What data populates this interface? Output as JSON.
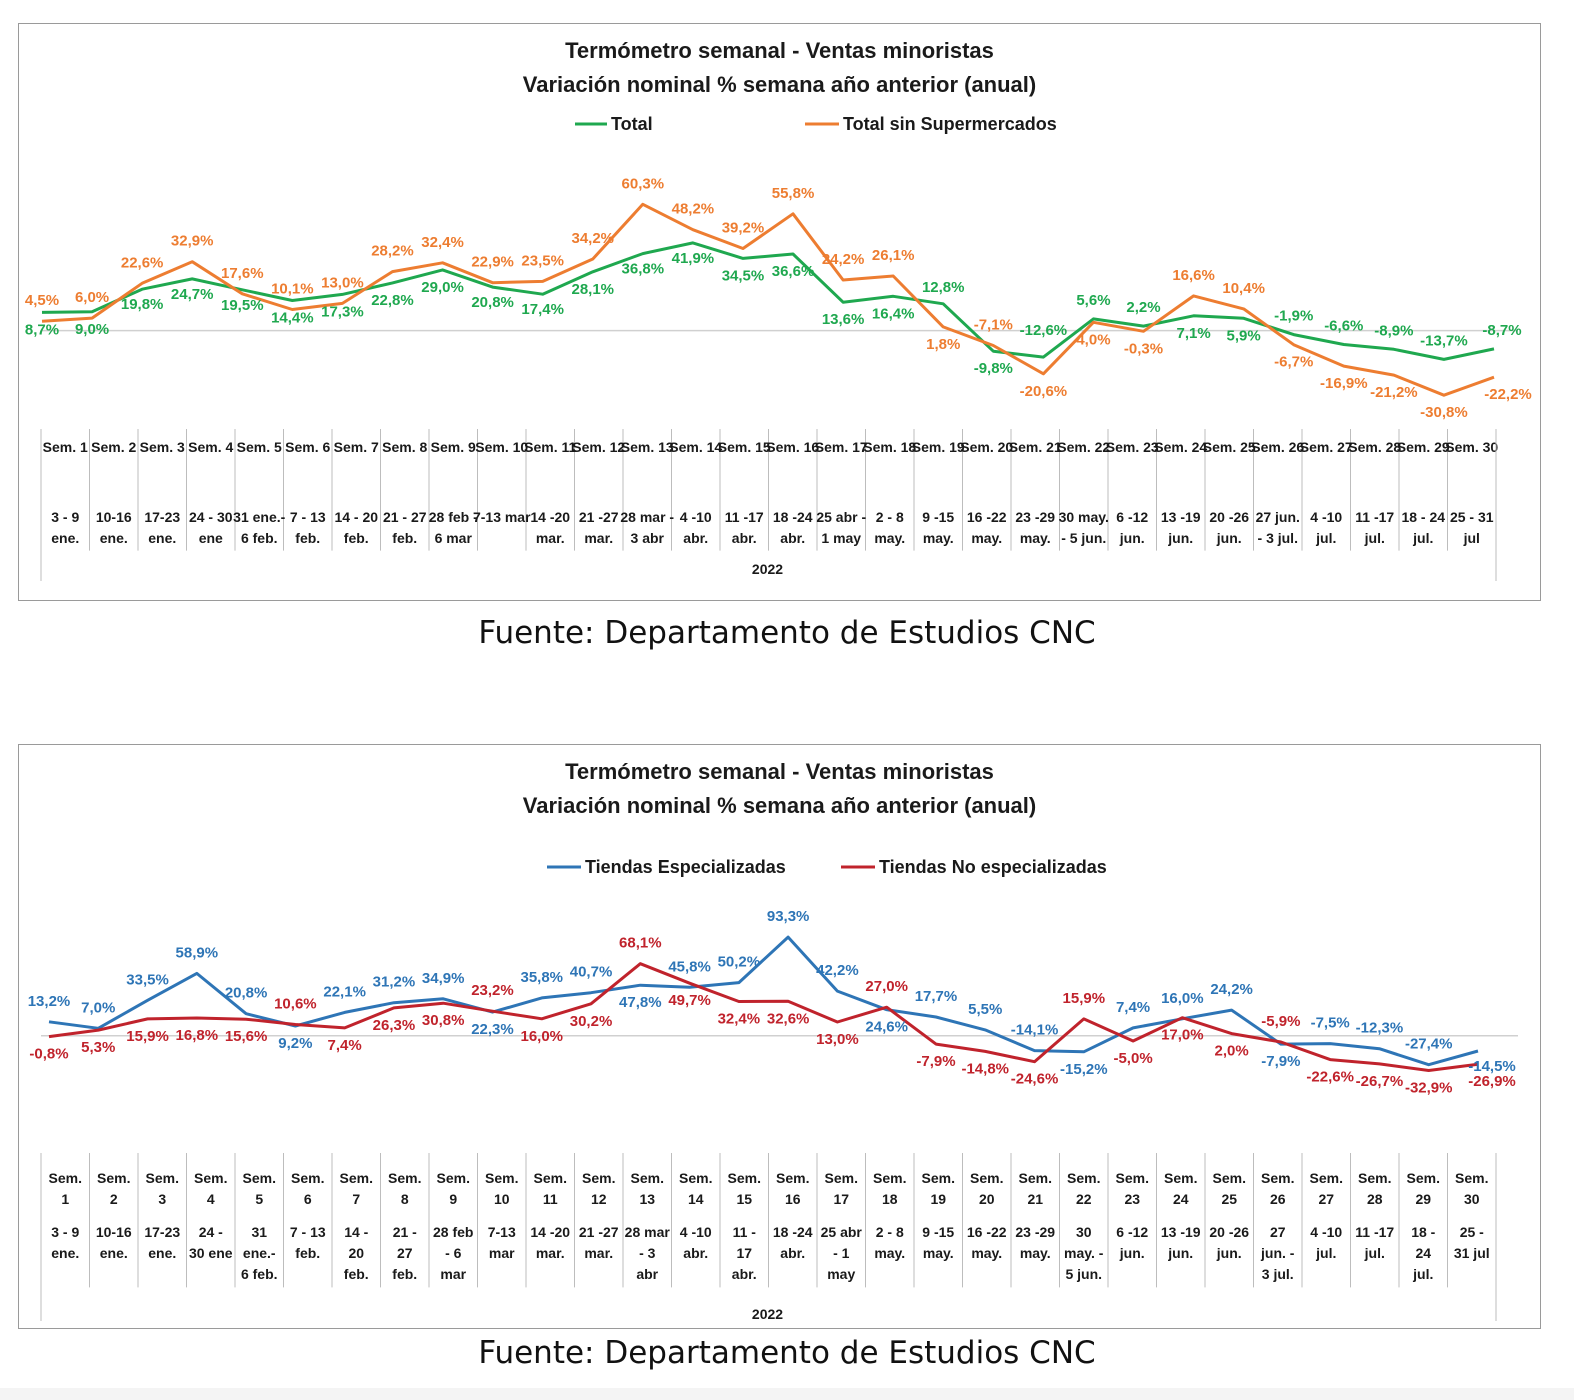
{
  "chart_data": [
    {
      "type": "line",
      "title": "Termómetro semanal - Ventas minoristas",
      "subtitle": "Variación nominal % semana año anterior (anual)",
      "x_group_label": "2022",
      "categories": [
        {
          "week": "Sem. 1",
          "dates": "3 - 9 ene."
        },
        {
          "week": "Sem. 2",
          "dates": "10-16 ene."
        },
        {
          "week": "Sem. 3",
          "dates": "17-23 ene."
        },
        {
          "week": "Sem. 4",
          "dates": "24 - 30 ene"
        },
        {
          "week": "Sem. 5",
          "dates": "31 ene.- 6 feb."
        },
        {
          "week": "Sem. 6",
          "dates": "7 - 13 feb."
        },
        {
          "week": "Sem. 7",
          "dates": "14 - 20 feb."
        },
        {
          "week": "Sem. 8",
          "dates": "21 - 27 feb."
        },
        {
          "week": "Sem. 9",
          "dates": "28 feb - 6 mar"
        },
        {
          "week": "Sem. 10",
          "dates": "7-13 mar"
        },
        {
          "week": "Sem. 11",
          "dates": "14 -20 mar."
        },
        {
          "week": "Sem. 12",
          "dates": "21 -27 mar."
        },
        {
          "week": "Sem. 13",
          "dates": "28 mar - 3 abr"
        },
        {
          "week": "Sem. 14",
          "dates": "4 -10 abr."
        },
        {
          "week": "Sem. 15",
          "dates": "11 -17 abr."
        },
        {
          "week": "Sem. 16",
          "dates": "18 -24 abr."
        },
        {
          "week": "Sem. 17",
          "dates": "25 abr - 1 may"
        },
        {
          "week": "Sem. 18",
          "dates": "2 - 8 may."
        },
        {
          "week": "Sem. 19",
          "dates": "9 -15 may."
        },
        {
          "week": "Sem. 20",
          "dates": "16 -22 may."
        },
        {
          "week": "Sem. 21",
          "dates": "23 -29 may."
        },
        {
          "week": "Sem. 22",
          "dates": "30 may. - 5 jun."
        },
        {
          "week": "Sem. 23",
          "dates": "6 -12 jun."
        },
        {
          "week": "Sem. 24",
          "dates": "13 -19 jun."
        },
        {
          "week": "Sem. 25",
          "dates": "20 -26 jun."
        },
        {
          "week": "Sem. 26",
          "dates": "27 jun. - 3 jul."
        },
        {
          "week": "Sem. 27",
          "dates": "4 -10 jul."
        },
        {
          "week": "Sem. 28",
          "dates": "11 -17 jul."
        },
        {
          "week": "Sem. 29",
          "dates": "18 - 24 jul."
        },
        {
          "week": "Sem. 30",
          "dates": "25 - 31 jul"
        }
      ],
      "ylim": [
        -35,
        70
      ],
      "grid": false,
      "legend_position": "top",
      "series": [
        {
          "name": "Total",
          "color": "#1fa84f",
          "values": [
            8.7,
            9.0,
            19.8,
            24.7,
            19.5,
            14.4,
            17.3,
            22.8,
            29.0,
            20.8,
            17.4,
            28.1,
            36.8,
            41.9,
            34.5,
            36.6,
            13.6,
            16.4,
            12.8,
            -9.8,
            -12.6,
            5.6,
            2.2,
            7.1,
            5.9,
            -1.9,
            -6.6,
            -8.9,
            -13.7,
            -8.7
          ],
          "labels": [
            "8,7%",
            "9,0%",
            "19,8%",
            "24,7%",
            "19,5%",
            "14,4%",
            "17,3%",
            "22,8%",
            "29,0%",
            "20,8%",
            "17,4%",
            "28,1%",
            "36,8%",
            "41,9%",
            "34,5%",
            "36,6%",
            "13,6%",
            "16,4%",
            "12,8%",
            "-9,8%",
            "-12,6%",
            "5,6%",
            "2,2%",
            "7,1%",
            "5,9%",
            "-1,9%",
            "-6,6%",
            "-8,9%",
            "-13,7%",
            "-8,7%"
          ]
        },
        {
          "name": "Total sin Supermercados",
          "color": "#ed7d31",
          "values": [
            4.5,
            6.0,
            22.6,
            32.9,
            17.6,
            10.1,
            13.0,
            28.2,
            32.4,
            22.9,
            23.5,
            34.2,
            60.3,
            48.2,
            39.2,
            55.8,
            24.2,
            26.1,
            1.8,
            -7.1,
            -20.6,
            4.0,
            -0.3,
            16.6,
            10.4,
            -6.7,
            -16.9,
            -21.2,
            -30.8,
            -22.2
          ],
          "labels": [
            "4,5%",
            "6,0%",
            "22,6%",
            "32,9%",
            "17,6%",
            "10,1%",
            "13,0%",
            "28,2%",
            "32,4%",
            "22,9%",
            "23,5%",
            "34,2%",
            "60,3%",
            "48,2%",
            "39,2%",
            "55,8%",
            "24,2%",
            "26,1%",
            "1,8%",
            "-7,1%",
            "-20,6%",
            "4,0%",
            "-0,3%",
            "16,6%",
            "10,4%",
            "-6,7%",
            "-16,9%",
            "-21,2%",
            "-30,8%",
            "-22,2%"
          ]
        }
      ],
      "source": "Fuente: Departamento de Estudios CNC"
    },
    {
      "type": "line",
      "title": "Termómetro semanal - Ventas minoristas",
      "subtitle": "Variación nominal % semana año anterior (anual)",
      "x_group_label": "2022",
      "categories": [
        {
          "week": "Sem. 1",
          "dates": "3 - 9 ene."
        },
        {
          "week": "Sem. 2",
          "dates": "10-16 ene."
        },
        {
          "week": "Sem. 3",
          "dates": "17-23 ene."
        },
        {
          "week": "Sem. 4",
          "dates": "24 - 30 ene"
        },
        {
          "week": "Sem. 5",
          "dates": "31 ene.- 6 feb."
        },
        {
          "week": "Sem. 6",
          "dates": "7 - 13 feb."
        },
        {
          "week": "Sem. 7",
          "dates": "14 - 20 feb."
        },
        {
          "week": "Sem. 8",
          "dates": "21 - 27 feb."
        },
        {
          "week": "Sem. 9",
          "dates": "28 feb - 6 mar"
        },
        {
          "week": "Sem. 10",
          "dates": "7-13 mar"
        },
        {
          "week": "Sem. 11",
          "dates": "14 -20 mar."
        },
        {
          "week": "Sem. 12",
          "dates": "21 -27 mar."
        },
        {
          "week": "Sem. 13",
          "dates": "28 mar - 3 abr"
        },
        {
          "week": "Sem. 14",
          "dates": "4 -10 abr."
        },
        {
          "week": "Sem. 15",
          "dates": "11 - 17 abr."
        },
        {
          "week": "Sem. 16",
          "dates": "18 -24 abr."
        },
        {
          "week": "Sem. 17",
          "dates": "25 abr - 1 may"
        },
        {
          "week": "Sem. 18",
          "dates": "2 - 8 may."
        },
        {
          "week": "Sem. 19",
          "dates": "9 -15 may."
        },
        {
          "week": "Sem. 20",
          "dates": "16 -22 may."
        },
        {
          "week": "Sem. 21",
          "dates": "23 -29 may."
        },
        {
          "week": "Sem. 22",
          "dates": "30 may. - 5 jun."
        },
        {
          "week": "Sem. 23",
          "dates": "6 -12 jun."
        },
        {
          "week": "Sem. 24",
          "dates": "13 -19 jun."
        },
        {
          "week": "Sem. 25",
          "dates": "20 -26 jun."
        },
        {
          "week": "Sem. 26",
          "dates": "27 jun. - 3 jul."
        },
        {
          "week": "Sem. 27",
          "dates": "4 -10 jul."
        },
        {
          "week": "Sem. 28",
          "dates": "11 -17 jul."
        },
        {
          "week": "Sem. 29",
          "dates": "18 - 24 jul."
        },
        {
          "week": "Sem. 30",
          "dates": "25 - 31 jul"
        }
      ],
      "ylim": [
        -40,
        100
      ],
      "grid": false,
      "legend_position": "top",
      "series": [
        {
          "name": "Tiendas Especializadas",
          "color": "#2e75b6",
          "values": [
            13.2,
            7.0,
            33.5,
            58.9,
            20.8,
            9.2,
            22.1,
            31.2,
            34.9,
            22.3,
            35.8,
            40.7,
            47.8,
            45.8,
            50.2,
            93.3,
            42.2,
            24.6,
            17.7,
            5.5,
            -14.1,
            -15.2,
            7.4,
            16.0,
            24.2,
            -7.9,
            -7.5,
            -12.3,
            -27.4,
            -14.5
          ],
          "labels": [
            "13,2%",
            "7,0%",
            "33,5%",
            "58,9%",
            "20,8%",
            "9,2%",
            "22,1%",
            "31,2%",
            "34,9%",
            "22,3%",
            "35,8%",
            "40,7%",
            "47,8%",
            "45,8%",
            "50,2%",
            "93,3%",
            "42,2%",
            "24,6%",
            "17,7%",
            "5,5%",
            "-14,1%",
            "-15,2%",
            "7,4%",
            "16,0%",
            "24,2%",
            "-7,9%",
            "-7,5%",
            "-12,3%",
            "-27,4%",
            "-14,5%"
          ]
        },
        {
          "name": "Tiendas No especializadas",
          "color": "#c0232c",
          "values": [
            -0.8,
            5.3,
            15.9,
            16.8,
            15.6,
            10.6,
            7.4,
            26.3,
            30.8,
            23.2,
            16.0,
            30.2,
            68.1,
            49.7,
            32.4,
            32.6,
            13.0,
            27.0,
            -7.9,
            -14.8,
            -24.6,
            15.9,
            -5.0,
            17.0,
            2.0,
            -5.9,
            -22.6,
            -26.7,
            -32.9,
            -26.9
          ],
          "labels": [
            "-0,8%",
            "5,3%",
            "15,9%",
            "16,8%",
            "15,6%",
            "10,6%",
            "7,4%",
            "26,3%",
            "30,8%",
            "23,2%",
            "16,0%",
            "30,2%",
            "68,1%",
            "49,7%",
            "32,4%",
            "32,6%",
            "13,0%",
            "27,0%",
            "-7,9%",
            "-14,8%",
            "-24,6%",
            "15,9%",
            "-5,0%",
            "17,0%",
            "2,0%",
            "-5,9%",
            "-22,6%",
            "-26,7%",
            "-32,9%",
            "-26,9%"
          ]
        }
      ],
      "source": "Fuente: Departamento de Estudios CNC"
    }
  ]
}
